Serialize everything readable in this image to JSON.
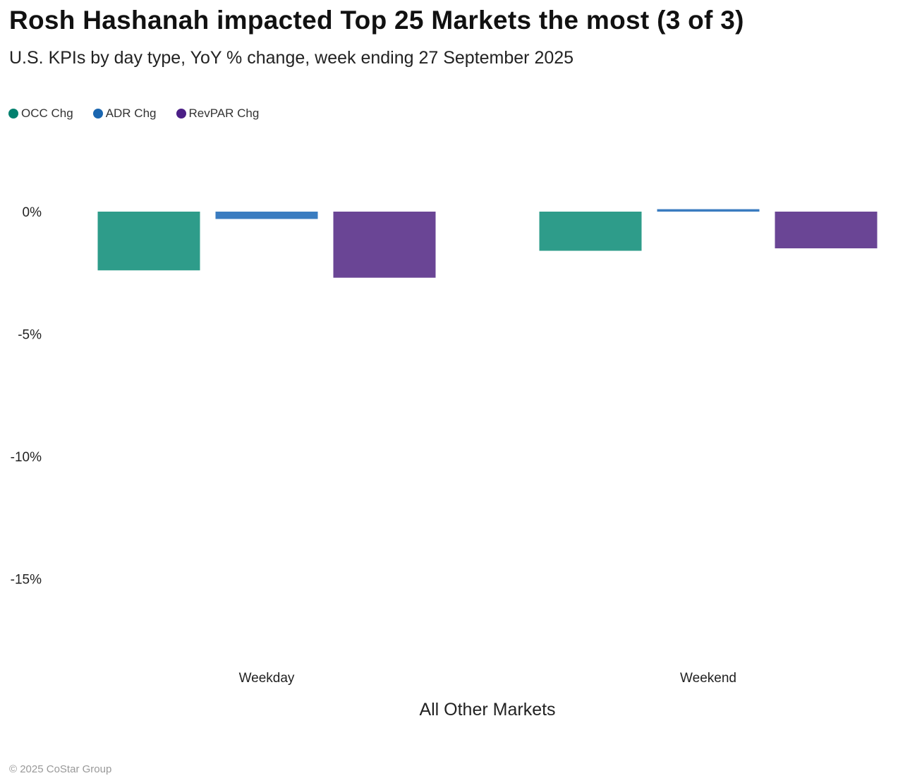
{
  "title": "Rosh Hashanah impacted Top 25 Markets the most (3 of 3)",
  "subtitle": "U.S. KPIs by day type, YoY % change, week ending 27 September 2025",
  "footer": "© 2025 CoStar Group",
  "chart_data": {
    "type": "bar",
    "title": "Rosh Hashanah impacted Top 25 Markets the most (3 of 3)",
    "subtitle": "U.S. KPIs by day type, YoY % change, week ending 27 September 2025",
    "xlabel": "All Other Markets",
    "ylabel": "",
    "categories": [
      "Weekday",
      "Weekend"
    ],
    "series": [
      {
        "name": "OCC Chg",
        "color": "#2e9c8a",
        "legend_color": "#00806e",
        "values": [
          -2.4,
          -1.6
        ]
      },
      {
        "name": "ADR Chg",
        "color": "#3a7cc0",
        "legend_color": "#1a66b0",
        "values": [
          -0.3,
          0.1
        ]
      },
      {
        "name": "RevPAR Chg",
        "color": "#6a4595",
        "legend_color": "#4b1f86",
        "values": [
          -2.7,
          -1.5
        ]
      }
    ],
    "yticks": [
      0,
      -5,
      -10,
      -15
    ],
    "ytick_labels": [
      "0%",
      "-5%",
      "-10%",
      "-15%"
    ],
    "ylim": [
      -18.5,
      2
    ],
    "grid": false,
    "legend_position": "top-left"
  }
}
